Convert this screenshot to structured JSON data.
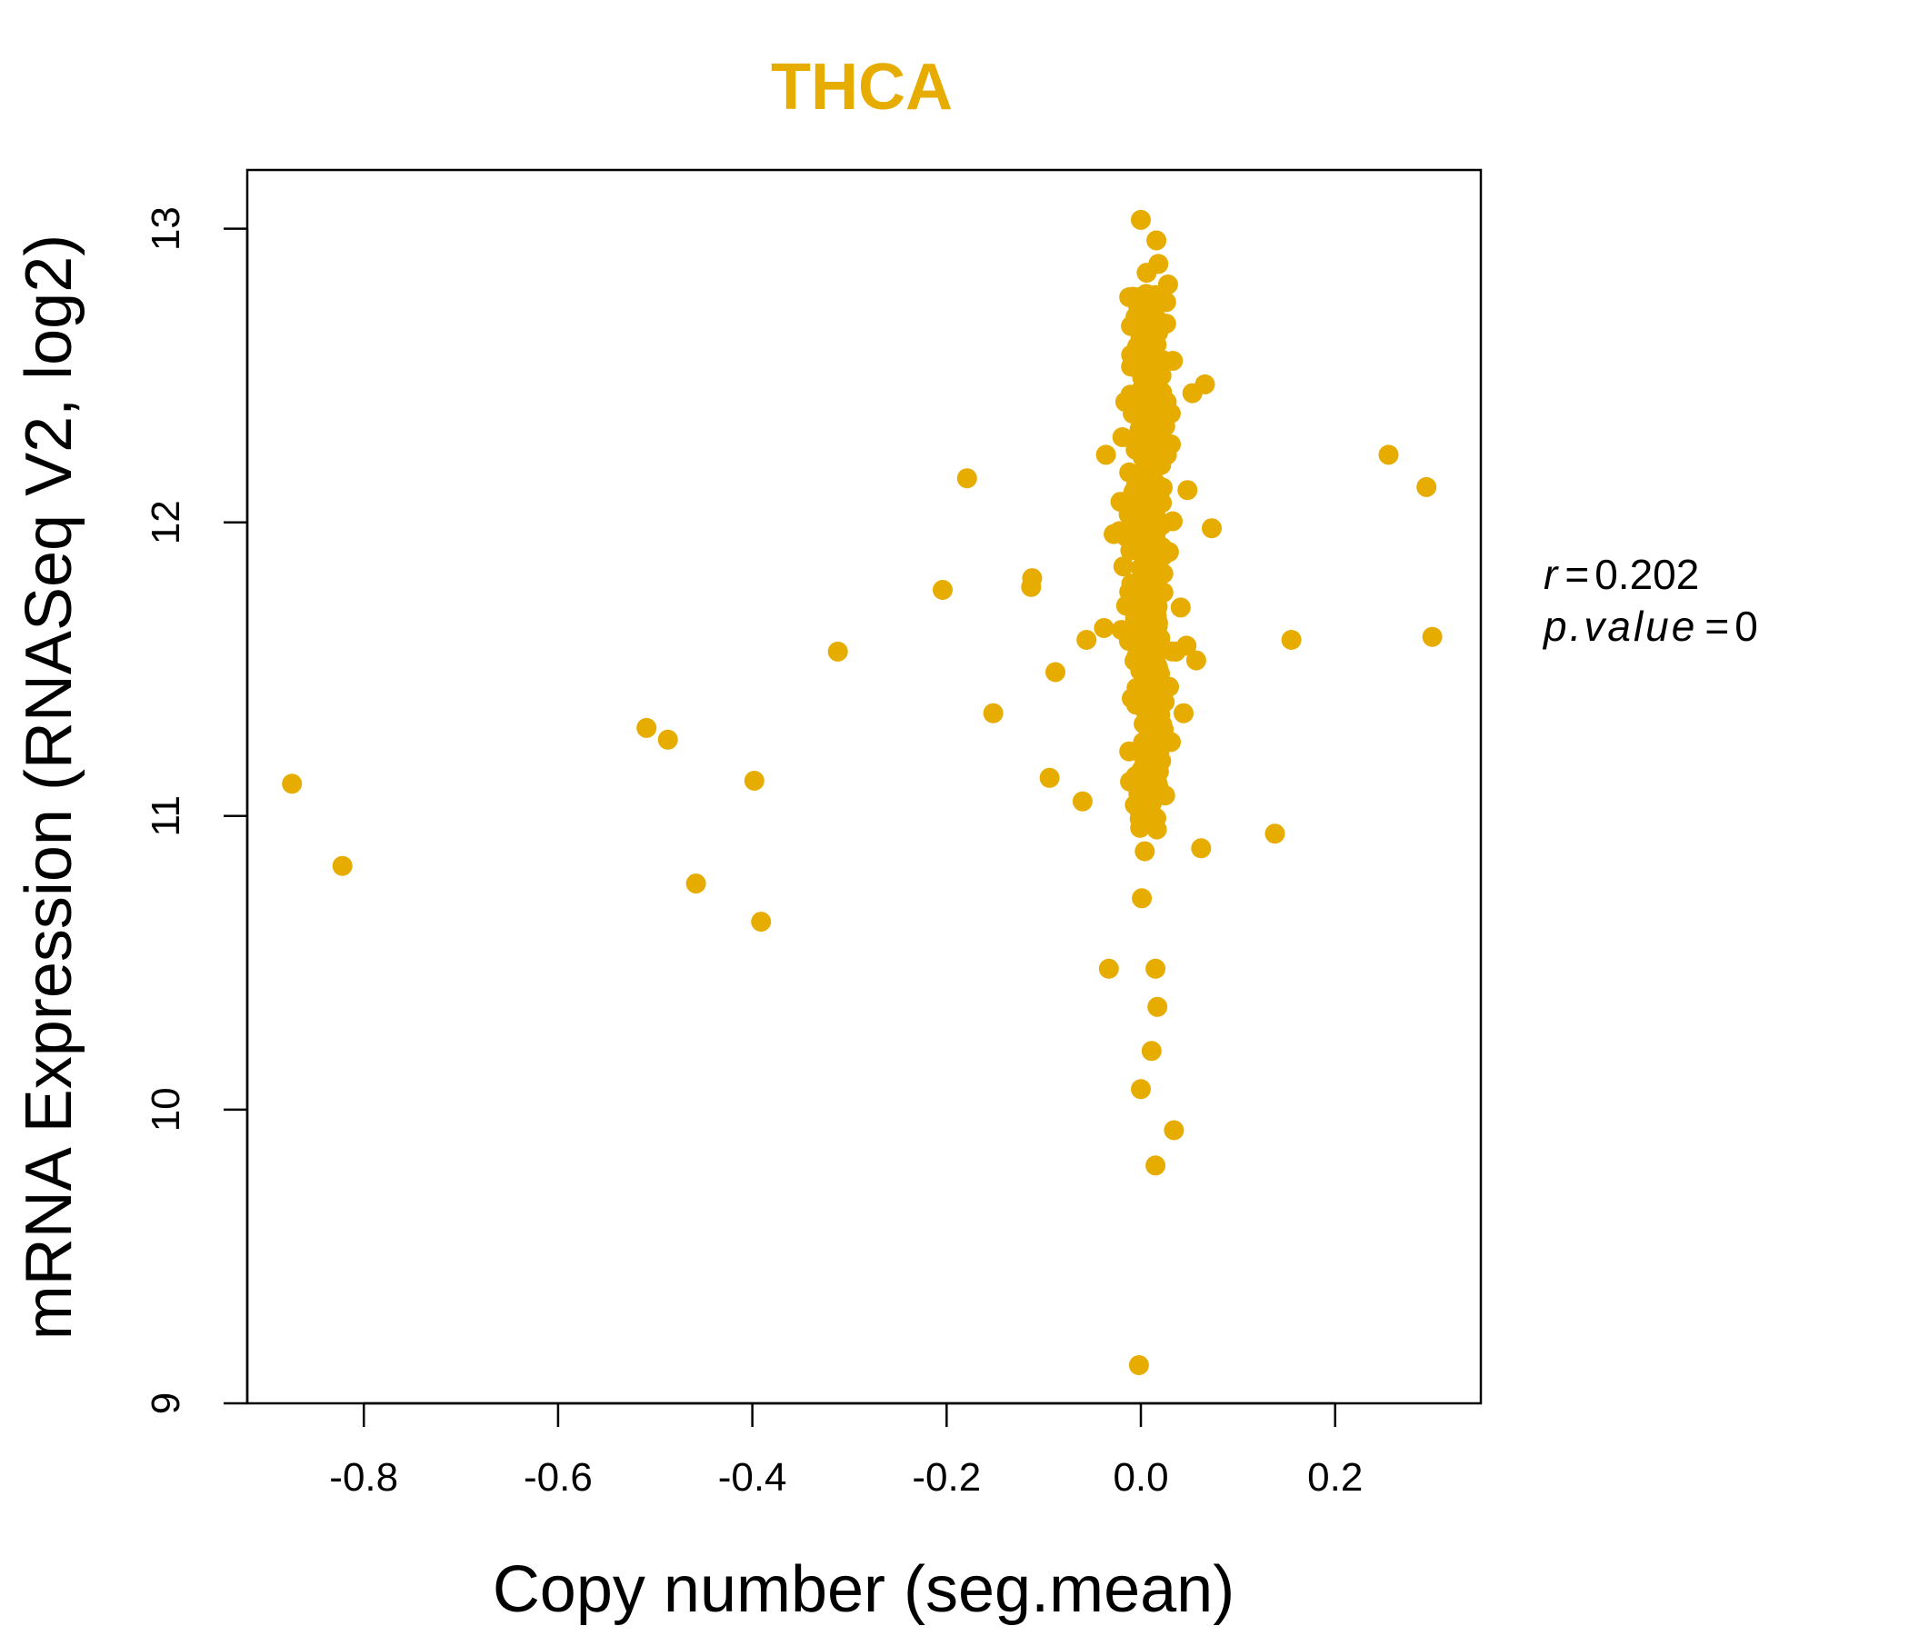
{
  "chart_data": {
    "type": "scatter",
    "title": "THCA",
    "xlabel": "Copy number (seg.mean)",
    "ylabel": "mRNA Expression (RNASeq V2, log2)",
    "xlim": [
      -0.92,
      0.35
    ],
    "ylim": [
      9.0,
      13.2
    ],
    "xticks": [
      -0.8,
      -0.6,
      -0.4,
      -0.2,
      0.0,
      0.2
    ],
    "xtick_labels": [
      "-0.8",
      "-0.6",
      "-0.4",
      "-0.2",
      "0.0",
      "0.2"
    ],
    "yticks": [
      9,
      10,
      11,
      12,
      13
    ],
    "ytick_labels": [
      "9",
      "10",
      "11",
      "12",
      "13"
    ],
    "point_color": "#E6AC00",
    "stats": {
      "r_label": "r",
      "r_value": "0.202",
      "p_label": "p.value",
      "p_value": "0"
    },
    "outliers": [
      {
        "x": -0.874,
        "y": 11.11
      },
      {
        "x": -0.822,
        "y": 10.83
      },
      {
        "x": -0.509,
        "y": 11.3
      },
      {
        "x": -0.487,
        "y": 11.26
      },
      {
        "x": -0.458,
        "y": 10.77
      },
      {
        "x": -0.398,
        "y": 11.12
      },
      {
        "x": -0.391,
        "y": 10.64
      },
      {
        "x": -0.312,
        "y": 11.56
      },
      {
        "x": -0.204,
        "y": 11.77
      },
      {
        "x": -0.179,
        "y": 12.15
      },
      {
        "x": -0.152,
        "y": 11.35
      },
      {
        "x": -0.113,
        "y": 11.78
      },
      {
        "x": -0.112,
        "y": 11.81
      },
      {
        "x": -0.094,
        "y": 11.13
      },
      {
        "x": -0.088,
        "y": 11.49
      },
      {
        "x": -0.06,
        "y": 11.05
      },
      {
        "x": -0.056,
        "y": 11.6
      },
      {
        "x": -0.038,
        "y": 11.64
      },
      {
        "x": -0.036,
        "y": 12.23
      },
      {
        "x": -0.033,
        "y": 10.48
      },
      {
        "x": -0.028,
        "y": 11.96
      },
      {
        "x": -0.022,
        "y": 11.97
      },
      {
        "x": -0.021,
        "y": 12.07
      },
      {
        "x": -0.019,
        "y": 12.29
      },
      {
        "x": -0.018,
        "y": 11.85
      },
      {
        "x": -0.016,
        "y": 12.41
      },
      {
        "x": -0.015,
        "y": 11.95
      },
      {
        "x": -0.012,
        "y": 11.22
      },
      {
        "x": -0.01,
        "y": 12.57
      },
      {
        "x": -0.012,
        "y": 12.17
      },
      {
        "x": 0.0,
        "y": 13.03
      },
      {
        "x": 0.006,
        "y": 12.85
      },
      {
        "x": 0.016,
        "y": 12.96
      },
      {
        "x": 0.018,
        "y": 12.88
      },
      {
        "x": 0.028,
        "y": 12.81
      },
      {
        "x": 0.026,
        "y": 12.75
      },
      {
        "x": 0.033,
        "y": 12.55
      },
      {
        "x": 0.053,
        "y": 12.44
      },
      {
        "x": 0.066,
        "y": 12.47
      },
      {
        "x": 0.048,
        "y": 12.11
      },
      {
        "x": 0.073,
        "y": 11.98
      },
      {
        "x": 0.041,
        "y": 11.71
      },
      {
        "x": 0.036,
        "y": 11.56
      },
      {
        "x": 0.047,
        "y": 11.58
      },
      {
        "x": 0.057,
        "y": 11.53
      },
      {
        "x": 0.029,
        "y": 11.44
      },
      {
        "x": 0.044,
        "y": 11.35
      },
      {
        "x": 0.018,
        "y": 11.29
      },
      {
        "x": 0.025,
        "y": 11.07
      },
      {
        "x": 0.013,
        "y": 11.0
      },
      {
        "x": 0.062,
        "y": 10.89
      },
      {
        "x": 0.004,
        "y": 10.88
      },
      {
        "x": 0.001,
        "y": 10.72
      },
      {
        "x": 0.015,
        "y": 10.48
      },
      {
        "x": 0.017,
        "y": 10.35
      },
      {
        "x": 0.011,
        "y": 10.2
      },
      {
        "x": 0.0,
        "y": 10.07
      },
      {
        "x": 0.034,
        "y": 9.93
      },
      {
        "x": 0.015,
        "y": 9.81
      },
      {
        "x": -0.002,
        "y": 9.13
      },
      {
        "x": 0.138,
        "y": 10.94
      },
      {
        "x": 0.155,
        "y": 11.6
      },
      {
        "x": 0.255,
        "y": 12.23
      },
      {
        "x": 0.294,
        "y": 12.12
      },
      {
        "x": 0.3,
        "y": 11.61
      }
    ],
    "dense_cluster": {
      "note": "Dense vertical band of several hundred samples near zero copy number change",
      "x_center": 0.008,
      "x_sd": 0.009,
      "y_range": [
        10.95,
        12.78
      ],
      "count": 420
    }
  }
}
